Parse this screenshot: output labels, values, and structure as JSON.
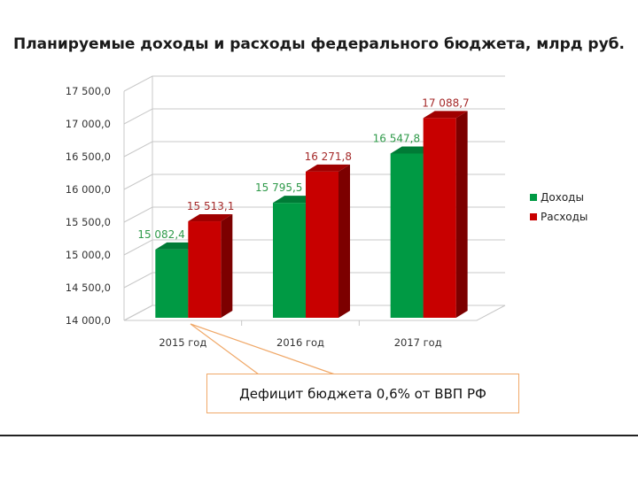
{
  "title": "Планируемые доходы и расходы федерального бюджета, млрд руб.",
  "callout_text": "Дефицит бюджета 0,6% от ВВП РФ",
  "chart_data": {
    "type": "bar",
    "title": "Планируемые доходы и расходы федерального бюджета, млрд руб.",
    "categories": [
      "2015 год",
      "2016 год",
      "2017 год"
    ],
    "series": [
      {
        "name": "Доходы",
        "values": [
          15082.4,
          15795.5,
          16547.8
        ],
        "labels": [
          "15 082,4",
          "15 795,5",
          "16 547,8"
        ],
        "color": "#009a44",
        "label_color": "#2f9a4a"
      },
      {
        "name": "Расходы",
        "values": [
          15513.1,
          16271.8,
          17088.7
        ],
        "labels": [
          "15 513,1",
          "16 271,8",
          "17 088,7"
        ],
        "color": "#c80000",
        "label_color": "#a52a2a"
      }
    ],
    "ylim": [
      14000,
      17500
    ],
    "yticks": [
      14000,
      14500,
      15000,
      15500,
      16000,
      16500,
      17000,
      17500
    ],
    "ytick_labels": [
      "14 000,0",
      "14 500,0",
      "15 000,0",
      "15 500,0",
      "16 000,0",
      "16 500,0",
      "17 000,0",
      "17 500,0"
    ],
    "grid": true,
    "legend_position": "right",
    "style": "3d"
  }
}
